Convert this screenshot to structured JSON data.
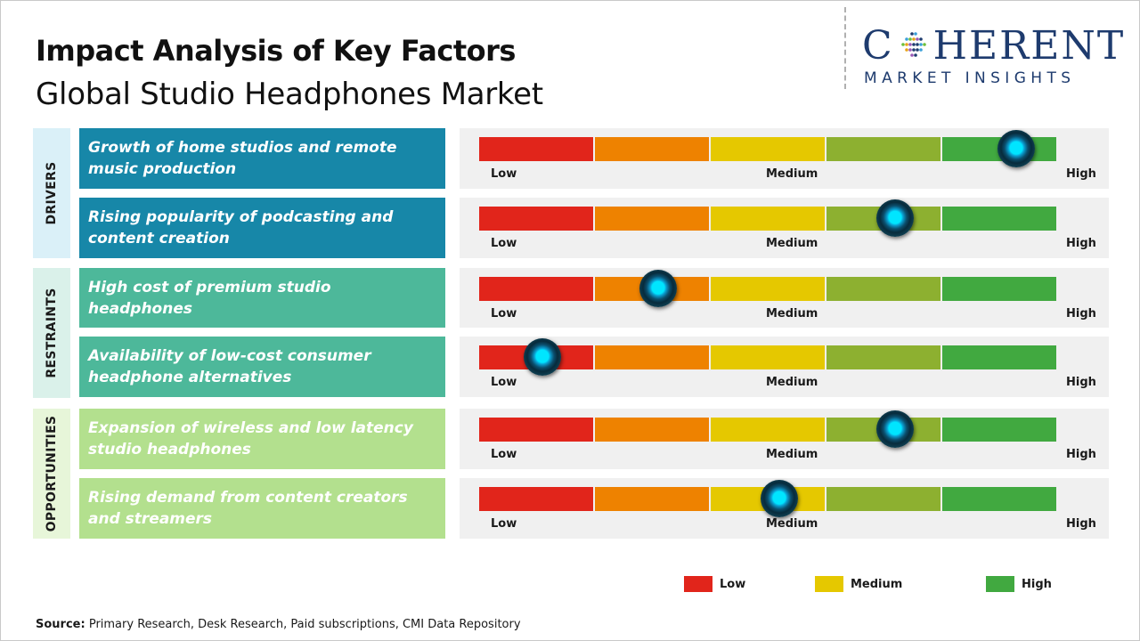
{
  "title": "Impact Analysis of Key Factors",
  "subtitle": "Global Studio Headphones Market",
  "logo": {
    "text_before": "C",
    "text_after": "HERENT",
    "sub": "MARKET INSIGHTS"
  },
  "colors": {
    "low": "#e1251b",
    "low_medium": "#ee8200",
    "medium": "#e5c800",
    "medium_high": "#8db030",
    "high": "#41a940",
    "drivers_box": "#1787a8",
    "drivers_cat_bg": "#daf0f8",
    "restraints_box": "#4db89a",
    "restraints_cat_bg": "#daf1ea",
    "opportunities_box": "#b3e08e",
    "opportunities_cat_bg": "#e7f6d9"
  },
  "scale_labels": {
    "low": "Low",
    "medium": "Medium",
    "high": "High"
  },
  "categories": [
    {
      "name": "DRIVERS"
    },
    {
      "name": "RESTRAINTS"
    },
    {
      "name": "OPPORTUNITIES"
    }
  ],
  "legend": [
    {
      "label": "Low",
      "color": "#e1251b"
    },
    {
      "label": "Medium",
      "color": "#e5c800"
    },
    {
      "label": "High",
      "color": "#41a940"
    }
  ],
  "chart_data": {
    "type": "bar",
    "title": "Impact Analysis of Key Factors",
    "subtitle": "Global Studio Headphones Market",
    "scale": [
      "Low",
      "Medium",
      "High"
    ],
    "xlim": [
      0,
      1
    ],
    "factors": [
      {
        "category": "DRIVERS",
        "label": "Growth of home studios and remote music production",
        "impact": 0.93
      },
      {
        "category": "DRIVERS",
        "label": "Rising popularity of podcasting and content creation",
        "impact": 0.72
      },
      {
        "category": "RESTRAINTS",
        "label": "High cost of premium studio headphones",
        "impact": 0.31
      },
      {
        "category": "RESTRAINTS",
        "label": "Availability of low-cost consumer headphone alternatives",
        "impact": 0.11
      },
      {
        "category": "OPPORTUNITIES",
        "label": "Expansion of wireless and low latency studio headphones",
        "impact": 0.72
      },
      {
        "category": "OPPORTUNITIES",
        "label": "Rising demand from content creators and streamers",
        "impact": 0.52
      }
    ]
  },
  "source": {
    "label": "Source:",
    "text": "Primary Research, Desk Research, Paid subscriptions, CMI Data Repository"
  }
}
